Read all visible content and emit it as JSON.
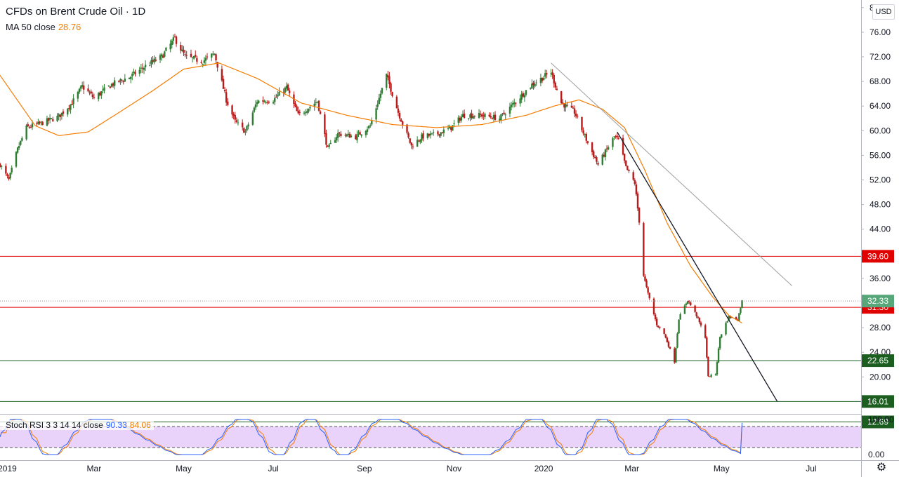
{
  "legend": {
    "title": "CFDs on Brent Crude Oil · 1D",
    "ma_label": "MA 50 close",
    "ma_value": "28.76"
  },
  "rsi_legend": {
    "label": "Stoch RSI 3 3 14 14 close",
    "k_value": "90.33",
    "d_value": "84.06"
  },
  "currency": "USD",
  "colors": {
    "up": "#26a69a",
    "up_body": "#2e7d32",
    "down": "#b71c1c",
    "ma": "#f57c00",
    "red_level": "#e00000",
    "green_level": "#1b5e20",
    "price_badge": "#57a77a",
    "stoch_k": "#2962ff",
    "stoch_d": "#f57c00",
    "stoch_band": "#e1c4f8"
  },
  "chart_data": {
    "type": "candlestick",
    "symbol": "CFDs on Brent Crude Oil",
    "interval": "1D",
    "currency": "USD",
    "y_range": [
      14,
      81
    ],
    "y_ticks": [
      16,
      20,
      24,
      28,
      32,
      36,
      40,
      44,
      48,
      52,
      56,
      60,
      64,
      68,
      72,
      76,
      80
    ],
    "y_tick_labels": [
      "16.00",
      "20.00",
      "24.00",
      "28.00",
      "32.00",
      "36.00",
      "40.00",
      "44.00",
      "48.00",
      "52.00",
      "56.00",
      "60.00",
      "64.00",
      "68.00",
      "72.00",
      "76.00",
      "80.00"
    ],
    "x_range": [
      "2018-12-27",
      "2020-08-04"
    ],
    "x_ticks": [
      {
        "date": "2019-01-01",
        "label": "2019"
      },
      {
        "date": "2019-03-01",
        "label": "Mar"
      },
      {
        "date": "2019-05-01",
        "label": "May"
      },
      {
        "date": "2019-07-01",
        "label": "Jul"
      },
      {
        "date": "2019-09-01",
        "label": "Sep"
      },
      {
        "date": "2019-11-01",
        "label": "Nov"
      },
      {
        "date": "2020-01-01",
        "label": "2020"
      },
      {
        "date": "2020-03-01",
        "label": "Mar"
      },
      {
        "date": "2020-05-01",
        "label": "May"
      },
      {
        "date": "2020-07-01",
        "label": "Jul"
      }
    ],
    "close_anchors": [
      [
        "2018-12-27",
        54.5
      ],
      [
        "2019-01-02",
        52.0
      ],
      [
        "2019-01-08",
        57.0
      ],
      [
        "2019-01-14",
        60.5
      ],
      [
        "2019-01-25",
        61.3
      ],
      [
        "2019-02-05",
        62.3
      ],
      [
        "2019-02-14",
        64.5
      ],
      [
        "2019-02-21",
        67.2
      ],
      [
        "2019-03-01",
        65.3
      ],
      [
        "2019-03-13",
        67.5
      ],
      [
        "2019-03-26",
        68.8
      ],
      [
        "2019-04-05",
        70.5
      ],
      [
        "2019-04-16",
        72.0
      ],
      [
        "2019-04-25",
        75.0
      ],
      [
        "2019-05-02",
        72.0
      ],
      [
        "2019-05-14",
        71.3
      ],
      [
        "2019-05-22",
        72.5
      ],
      [
        "2019-05-30",
        65.0
      ],
      [
        "2019-06-05",
        61.5
      ],
      [
        "2019-06-12",
        59.8
      ],
      [
        "2019-06-20",
        64.8
      ],
      [
        "2019-07-01",
        65.0
      ],
      [
        "2019-07-10",
        67.0
      ],
      [
        "2019-07-18",
        62.5
      ],
      [
        "2019-07-31",
        64.8
      ],
      [
        "2019-08-07",
        57.0
      ],
      [
        "2019-08-14",
        59.5
      ],
      [
        "2019-08-26",
        59.0
      ],
      [
        "2019-09-05",
        60.8
      ],
      [
        "2019-09-16",
        69.0
      ],
      [
        "2019-09-24",
        63.0
      ],
      [
        "2019-10-03",
        57.5
      ],
      [
        "2019-10-10",
        59.0
      ],
      [
        "2019-10-21",
        59.5
      ],
      [
        "2019-10-30",
        60.5
      ],
      [
        "2019-11-07",
        62.5
      ],
      [
        "2019-11-20",
        62.5
      ],
      [
        "2019-12-02",
        62.0
      ],
      [
        "2019-12-12",
        64.5
      ],
      [
        "2019-12-24",
        67.5
      ],
      [
        "2020-01-06",
        69.5
      ],
      [
        "2020-01-13",
        64.5
      ],
      [
        "2020-01-22",
        63.0
      ],
      [
        "2020-01-31",
        58.0
      ],
      [
        "2020-02-07",
        54.5
      ],
      [
        "2020-02-18",
        59.0
      ],
      [
        "2020-02-21",
        58.5
      ],
      [
        "2020-02-26",
        54.0
      ],
      [
        "2020-03-03",
        51.5
      ],
      [
        "2020-03-06",
        45.3
      ],
      [
        "2020-03-09",
        36.5
      ],
      [
        "2020-03-12",
        33.5
      ],
      [
        "2020-03-18",
        28.5
      ],
      [
        "2020-03-23",
        27.0
      ],
      [
        "2020-03-30",
        22.5
      ],
      [
        "2020-04-02",
        29.5
      ],
      [
        "2020-04-08",
        32.5
      ],
      [
        "2020-04-14",
        30.0
      ],
      [
        "2020-04-20",
        26.5
      ],
      [
        "2020-04-22",
        20.0
      ],
      [
        "2020-04-27",
        20.5
      ],
      [
        "2020-04-30",
        26.5
      ],
      [
        "2020-05-06",
        29.8
      ],
      [
        "2020-05-12",
        29.3
      ],
      [
        "2020-05-15",
        32.33
      ]
    ],
    "ma50_anchors": [
      [
        "2018-12-27",
        69.0
      ],
      [
        "2019-01-20",
        60.8
      ],
      [
        "2019-02-05",
        59.2
      ],
      [
        "2019-02-25",
        59.8
      ],
      [
        "2019-03-15",
        62.5
      ],
      [
        "2019-04-10",
        66.5
      ],
      [
        "2019-05-01",
        70.0
      ],
      [
        "2019-05-25",
        71.0
      ],
      [
        "2019-06-20",
        68.5
      ],
      [
        "2019-07-20",
        64.5
      ],
      [
        "2019-08-20",
        62.5
      ],
      [
        "2019-09-20",
        61.0
      ],
      [
        "2019-10-20",
        60.5
      ],
      [
        "2019-11-20",
        61.0
      ],
      [
        "2019-12-20",
        62.5
      ],
      [
        "2020-01-08",
        64.0
      ],
      [
        "2020-01-25",
        65.0
      ],
      [
        "2020-02-10",
        63.5
      ],
      [
        "2020-02-25",
        60.5
      ],
      [
        "2020-03-10",
        53.5
      ],
      [
        "2020-03-25",
        45.0
      ],
      [
        "2020-04-10",
        38.0
      ],
      [
        "2020-04-25",
        33.0
      ],
      [
        "2020-05-06",
        30.0
      ],
      [
        "2020-05-15",
        28.76
      ]
    ],
    "series": [
      {
        "name": "MA 50 close",
        "last_value": 28.76
      }
    ],
    "horizontal_levels": [
      {
        "value": 39.6,
        "label": "39.60",
        "kind": "resistance"
      },
      {
        "value": 31.3,
        "label": "31.30",
        "kind": "resistance"
      },
      {
        "value": 22.65,
        "label": "22.65",
        "kind": "support"
      },
      {
        "value": 16.01,
        "label": "16.01",
        "kind": "support"
      },
      {
        "value": 12.69,
        "label": "12.69",
        "kind": "support"
      }
    ],
    "trendlines": [
      {
        "from": [
          "2020-01-06",
          71.0
        ],
        "to": [
          "2020-06-18",
          34.8
        ],
        "style": "gray"
      },
      {
        "from": [
          "2020-02-20",
          59.8
        ],
        "to": [
          "2020-06-08",
          16.0
        ],
        "style": "black"
      }
    ],
    "last_price": {
      "value": 32.33,
      "label": "32.33"
    },
    "stoch_rsi": {
      "name": "Stoch RSI 3 3 14 14 close",
      "k": 90.33,
      "d": 84.06,
      "y_range": [
        0,
        100
      ],
      "y_ticks": [
        "100.00",
        "0.00"
      ],
      "bands": [
        20,
        80
      ]
    }
  }
}
